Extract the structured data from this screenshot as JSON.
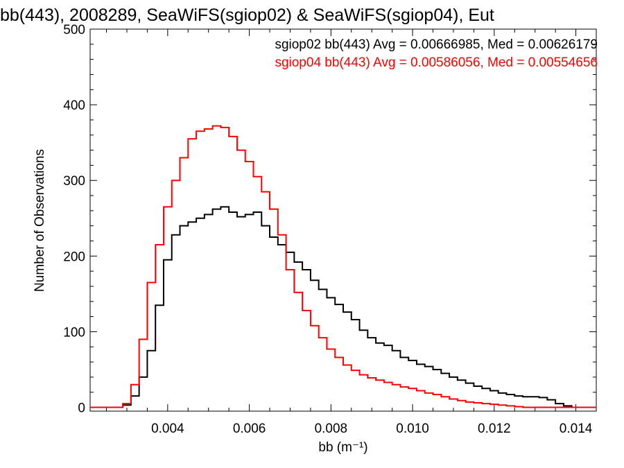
{
  "chart_data": {
    "type": "histogram-step",
    "title": "bb(443), 2008289, SeaWiFS(sgiop02) & SeaWiFS(sgiop04), Eut",
    "xlabel": "bb (m⁻¹)",
    "ylabel": "Number of Observations",
    "xlim": [
      0.0021,
      0.0145
    ],
    "ylim": [
      -5,
      500
    ],
    "xticks": [
      0.004,
      0.006,
      0.008,
      0.01,
      0.012,
      0.014
    ],
    "xtick_labels": [
      "0.004",
      "0.006",
      "0.008",
      "0.010",
      "0.012",
      "0.014"
    ],
    "yticks": [
      0,
      100,
      200,
      300,
      400,
      500
    ],
    "ytick_labels": [
      "0",
      "100",
      "200",
      "300",
      "400",
      "500"
    ],
    "legend_placement": "top-right",
    "series": [
      {
        "name": "sgiop02",
        "color": "#000000",
        "label": "sgiop02 bb(443) Avg = 0.00666985, Med = 0.00626179",
        "x": [
          0.0025,
          0.0029,
          0.0031,
          0.0033,
          0.0035,
          0.0037,
          0.0039,
          0.0041,
          0.0043,
          0.0045,
          0.0047,
          0.0049,
          0.0051,
          0.0053,
          0.0055,
          0.0057,
          0.0059,
          0.0061,
          0.0063,
          0.0065,
          0.0067,
          0.0069,
          0.0071,
          0.0073,
          0.0075,
          0.0077,
          0.0079,
          0.0081,
          0.0083,
          0.0085,
          0.0087,
          0.0089,
          0.0091,
          0.0093,
          0.0095,
          0.0097,
          0.0099,
          0.0101,
          0.0103,
          0.0105,
          0.0107,
          0.0109,
          0.0111,
          0.0113,
          0.0115,
          0.0117,
          0.0119,
          0.0121,
          0.0123,
          0.0125,
          0.0127,
          0.0129,
          0.0131,
          0.0133,
          0.0135,
          0.0137,
          0.0139,
          0.0141,
          0.0143
        ],
        "values": [
          0,
          3,
          15,
          40,
          75,
          135,
          195,
          228,
          240,
          245,
          250,
          255,
          262,
          265,
          258,
          252,
          255,
          258,
          240,
          225,
          215,
          205,
          192,
          182,
          168,
          156,
          145,
          136,
          126,
          116,
          102,
          92,
          85,
          82,
          75,
          66,
          62,
          57,
          54,
          50,
          45,
          40,
          36,
          32,
          28,
          25,
          22,
          19,
          17,
          15,
          14,
          14,
          13,
          10,
          5,
          2,
          0,
          0,
          0
        ]
      },
      {
        "name": "sgiop04",
        "color": "#ff0000",
        "label": "sgiop04 bb(443) Avg = 0.00586056, Med = 0.00554656",
        "x": [
          0.0025,
          0.0029,
          0.0031,
          0.0033,
          0.0035,
          0.0037,
          0.0039,
          0.0041,
          0.0043,
          0.0045,
          0.0047,
          0.0049,
          0.0051,
          0.0053,
          0.0055,
          0.0057,
          0.0059,
          0.0061,
          0.0063,
          0.0065,
          0.0067,
          0.0069,
          0.0071,
          0.0073,
          0.0075,
          0.0077,
          0.0079,
          0.0081,
          0.0083,
          0.0085,
          0.0087,
          0.0089,
          0.0091,
          0.0093,
          0.0095,
          0.0097,
          0.0099,
          0.0101,
          0.0103,
          0.0105,
          0.0107,
          0.0109,
          0.0111,
          0.0113,
          0.0115,
          0.0117,
          0.0119,
          0.0121,
          0.0123,
          0.0125,
          0.0127,
          0.0129,
          0.0131,
          0.0133,
          0.0135,
          0.0137,
          0.0139,
          0.0141,
          0.0143
        ],
        "values": [
          0,
          5,
          30,
          90,
          165,
          215,
          265,
          300,
          330,
          355,
          365,
          368,
          372,
          370,
          358,
          340,
          325,
          305,
          285,
          262,
          228,
          182,
          152,
          128,
          108,
          92,
          77,
          66,
          56,
          49,
          43,
          39,
          36,
          33,
          30,
          27,
          25,
          22,
          19,
          17,
          14,
          11,
          9,
          7,
          6,
          5,
          4,
          3,
          2,
          1,
          0,
          0,
          0,
          0,
          0,
          0,
          0,
          0,
          0
        ]
      }
    ]
  }
}
